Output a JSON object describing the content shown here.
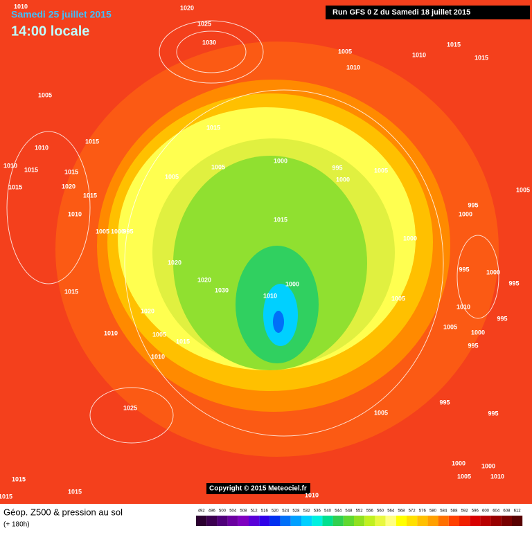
{
  "header": {
    "date": "Samedi 25 juillet 2015",
    "time": "14:00 locale",
    "run": "Run GFS 0 Z du Samedi 18 juillet 2015"
  },
  "copyright": "Copyright © 2015 Meteociel.fr",
  "map": {
    "isobar_labels": [
      "1010",
      "1020",
      "1025",
      "1030",
      "1005",
      "1010",
      "1010",
      "1015",
      "1015",
      "1005",
      "1015",
      "1010",
      "1015",
      "1010",
      "1015",
      "1015",
      "1000",
      "995",
      "1000",
      "1005",
      "1005",
      "1005",
      "1020",
      "1015",
      "1015",
      "1005",
      "995",
      "1000",
      "1010",
      "1015",
      "1005",
      "1000",
      "995",
      "1000",
      "1020",
      "995",
      "1000",
      "995",
      "1020",
      "1000",
      "1030",
      "1010",
      "1015",
      "1005",
      "1020",
      "1010",
      "995",
      "1005",
      "1010",
      "1005",
      "1015",
      "1000",
      "995",
      "1010",
      "1025",
      "995",
      "1005",
      "995",
      "1000",
      "1000",
      "1005",
      "1010",
      "1010",
      "1015",
      "1015",
      "1015"
    ]
  },
  "footer": {
    "title": "Géop. Z500 & pression au sol",
    "step": "(+ 180h)"
  },
  "legend": {
    "values": [
      492,
      496,
      500,
      504,
      508,
      512,
      516,
      520,
      524,
      528,
      532,
      536,
      540,
      544,
      548,
      552,
      556,
      560,
      564,
      568,
      572,
      576,
      580,
      584,
      588,
      592,
      596,
      600,
      604,
      608,
      612
    ],
    "colors": [
      "#2b0030",
      "#3c0050",
      "#50007a",
      "#6b00a0",
      "#8000c0",
      "#5a00d8",
      "#3000e8",
      "#0030f0",
      "#0070f8",
      "#00a0ff",
      "#00d0ff",
      "#00f0e0",
      "#00e090",
      "#30d050",
      "#60d830",
      "#90e020",
      "#c0f020",
      "#e8f840",
      "#ffff80",
      "#ffff00",
      "#ffe000",
      "#ffc000",
      "#ffa000",
      "#ff7000",
      "#ff4000",
      "#f02000",
      "#d80000",
      "#b80000",
      "#980000",
      "#780000",
      "#580000"
    ]
  }
}
